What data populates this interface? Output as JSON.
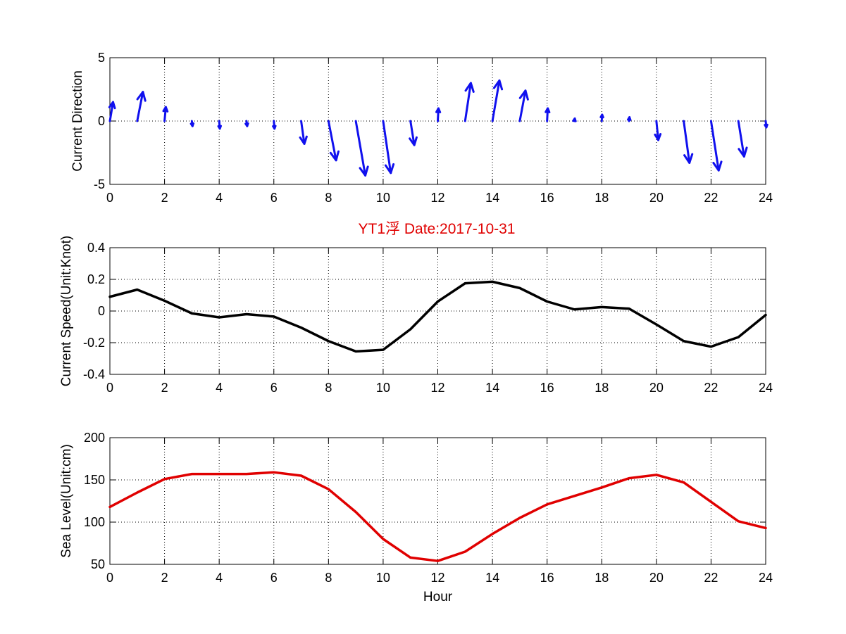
{
  "figure_title": "YT1浮    Date:2017-10-31",
  "colors": {
    "direction": "#1010ee",
    "speed": "#000000",
    "level": "#e00000",
    "title": "#e00000"
  },
  "chart_data": [
    {
      "type": "quiver",
      "ylabel": "Current Direction",
      "xlabel": "",
      "xlim": [
        0,
        24
      ],
      "ylim": [
        -5,
        5
      ],
      "xticks": [
        0,
        2,
        4,
        6,
        8,
        10,
        12,
        14,
        16,
        18,
        20,
        22,
        24
      ],
      "yticks": [
        -5,
        0,
        5
      ],
      "grid": true,
      "x": [
        0,
        1,
        2,
        3,
        4,
        5,
        6,
        7,
        8,
        9,
        10,
        11,
        12,
        13,
        14,
        15,
        16,
        17,
        18,
        19,
        20,
        21,
        22,
        23,
        24
      ],
      "u": [
        0.25,
        0.45,
        0.1,
        0.05,
        0.05,
        0.05,
        0.05,
        0.25,
        0.6,
        0.75,
        0.6,
        0.3,
        0.05,
        0.45,
        0.55,
        0.45,
        0.05,
        0.03,
        0.03,
        0.03,
        0.15,
        0.45,
        0.6,
        0.45,
        0.05
      ],
      "v": [
        1.5,
        2.3,
        1.1,
        -0.4,
        -0.6,
        -0.4,
        -0.6,
        -1.8,
        -3.1,
        -4.3,
        -4.1,
        -1.9,
        1.0,
        3.0,
        3.2,
        2.4,
        1.0,
        0.2,
        0.5,
        0.3,
        -1.5,
        -3.3,
        -3.9,
        -2.8,
        -0.5
      ]
    },
    {
      "type": "line",
      "ylabel": "Current Speed(Unit:Knot)",
      "xlabel": "",
      "xlim": [
        0,
        24
      ],
      "ylim": [
        -0.4,
        0.4
      ],
      "xticks": [
        0,
        2,
        4,
        6,
        8,
        10,
        12,
        14,
        16,
        18,
        20,
        22,
        24
      ],
      "yticks": [
        -0.4,
        -0.2,
        0,
        0.2,
        0.4
      ],
      "grid": true,
      "x": [
        0,
        1,
        2,
        3,
        4,
        5,
        6,
        7,
        8,
        9,
        10,
        11,
        12,
        13,
        14,
        15,
        16,
        17,
        18,
        19,
        20,
        21,
        22,
        23,
        24
      ],
      "values": [
        0.09,
        0.135,
        0.065,
        -0.015,
        -0.04,
        -0.02,
        -0.035,
        -0.105,
        -0.19,
        -0.255,
        -0.245,
        -0.115,
        0.06,
        0.175,
        0.185,
        0.145,
        0.06,
        0.01,
        0.025,
        0.015,
        -0.085,
        -0.19,
        -0.225,
        -0.165,
        -0.025
      ]
    },
    {
      "type": "line",
      "ylabel": "Sea Level(Unit:cm)",
      "xlabel": "Hour",
      "xlim": [
        0,
        24
      ],
      "ylim": [
        50,
        200
      ],
      "xticks": [
        0,
        2,
        4,
        6,
        8,
        10,
        12,
        14,
        16,
        18,
        20,
        22,
        24
      ],
      "yticks": [
        50,
        100,
        150,
        200
      ],
      "grid": true,
      "x": [
        0,
        1,
        2,
        3,
        4,
        5,
        6,
        7,
        8,
        9,
        10,
        11,
        12,
        13,
        14,
        15,
        16,
        17,
        18,
        19,
        20,
        21,
        22,
        23,
        24
      ],
      "values": [
        118,
        135,
        151,
        157,
        157,
        157,
        159,
        155,
        139,
        112,
        80,
        58,
        54,
        65,
        86,
        105,
        121,
        131,
        141,
        152,
        156,
        147,
        124,
        101,
        93
      ]
    }
  ]
}
